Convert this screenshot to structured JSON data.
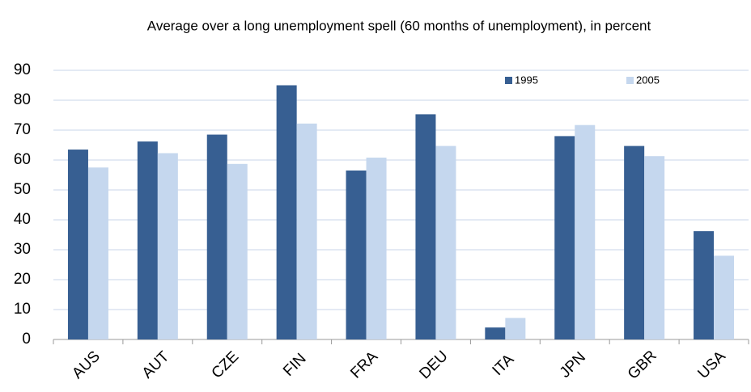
{
  "chart_data": {
    "type": "bar",
    "title": "Average over a long unemployment spell (60 months of unemployment), in percent",
    "categories": [
      "AUS",
      "AUT",
      "CZE",
      "FIN",
      "FRA",
      "DEU",
      "ITA",
      "JPN",
      "GBR",
      "USA"
    ],
    "series": [
      {
        "name": "1995",
        "color": "#375f92",
        "values": [
          63.5,
          66.2,
          68.5,
          85,
          56.5,
          75.3,
          4,
          68,
          64.7,
          36.2
        ]
      },
      {
        "name": "2005",
        "color": "#c5d7ee",
        "values": [
          57.5,
          62.3,
          58.7,
          72.2,
          60.8,
          64.7,
          7.2,
          71.7,
          61.3,
          28
        ]
      }
    ],
    "ylim": [
      0,
      90
    ],
    "yticks": [
      0,
      10,
      20,
      30,
      40,
      50,
      60,
      70,
      80,
      90
    ],
    "grid": true,
    "legend": "top-right"
  }
}
